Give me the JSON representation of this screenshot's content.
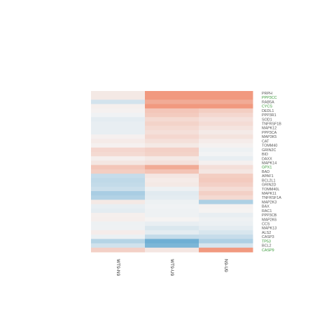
{
  "chart_data": {
    "type": "heatmap",
    "title": "",
    "columns": [
      "WT9-N9",
      "WT9-U9",
      "N9-U9"
    ],
    "rows": [
      "PRPH",
      "PPP3CC",
      "RAB5A",
      "CYCS",
      "DEDL1",
      "PPP3R1",
      "SOD1",
      "TNFRSF1B",
      "MAPK12",
      "PPP3CA",
      "MAP3K5",
      "CAT",
      "TOMM40",
      "GRIN2C",
      "BID",
      "DAXX",
      "MAPK14",
      "GPX1",
      "BAD",
      "APAF1",
      "BCL2L1",
      "GRIN2D",
      "TOMM40L",
      "MAPK11",
      "TNFRSF1A",
      "MAP2K3",
      "BAX",
      "RAC1",
      "PPP3CB",
      "MAP2K6",
      "CCS",
      "MAPK13",
      "ALS2",
      "CASP3",
      "TP53",
      "BCL2",
      "CASP9"
    ],
    "highlighted_rows": [
      "PPP3CC",
      "CYCS",
      "GPX1",
      "TP53",
      "CASP9"
    ],
    "values": [
      [
        0.1,
        0.75,
        0.75
      ],
      [
        0.1,
        0.75,
        0.75
      ],
      [
        -0.2,
        0.6,
        0.6
      ],
      [
        0.05,
        0.75,
        0.75
      ],
      [
        0.03,
        0.38,
        0.32
      ],
      [
        -0.03,
        0.34,
        0.24
      ],
      [
        -0.1,
        0.22,
        0.16
      ],
      [
        -0.08,
        0.28,
        0.2
      ],
      [
        -0.08,
        0.22,
        0.14
      ],
      [
        -0.08,
        0.18,
        0.09
      ],
      [
        0.04,
        0.24,
        0.15
      ],
      [
        0.08,
        0.17,
        0.07
      ],
      [
        0.04,
        0.1,
        0.03
      ],
      [
        0.25,
        0.3,
        -0.05
      ],
      [
        0.22,
        0.28,
        -0.02
      ],
      [
        0.05,
        0.1,
        -0.08
      ],
      [
        0.12,
        0.16,
        0.04
      ],
      [
        0.38,
        0.6,
        0.18
      ],
      [
        0.32,
        0.4,
        0.12
      ],
      [
        -0.28,
        0.12,
        0.32
      ],
      [
        -0.32,
        0.08,
        0.35
      ],
      [
        -0.3,
        0.1,
        0.3
      ],
      [
        -0.25,
        -0.05,
        0.2
      ],
      [
        -0.45,
        -0.12,
        0.3
      ],
      [
        -0.4,
        -0.1,
        0.22
      ],
      [
        0.1,
        -0.05,
        -0.42
      ],
      [
        -0.08,
        -0.03,
        0.03
      ],
      [
        -0.1,
        -0.04,
        0.02
      ],
      [
        0.05,
        -0.04,
        -0.08
      ],
      [
        0.06,
        0.02,
        -0.04
      ],
      [
        -0.05,
        -0.08,
        -0.06
      ],
      [
        -0.04,
        -0.16,
        -0.1
      ],
      [
        0.07,
        -0.1,
        -0.17
      ],
      [
        -0.06,
        -0.3,
        -0.28
      ],
      [
        -0.38,
        -0.8,
        -0.42
      ],
      [
        -0.22,
        -0.72,
        -0.18
      ],
      [
        0.3,
        0.12,
        0.75
      ]
    ],
    "color_scale": {
      "low": "#4d9dcc",
      "mid": "#f5f5f5",
      "high": "#ef7a57",
      "min": -1,
      "max": 1
    }
  }
}
